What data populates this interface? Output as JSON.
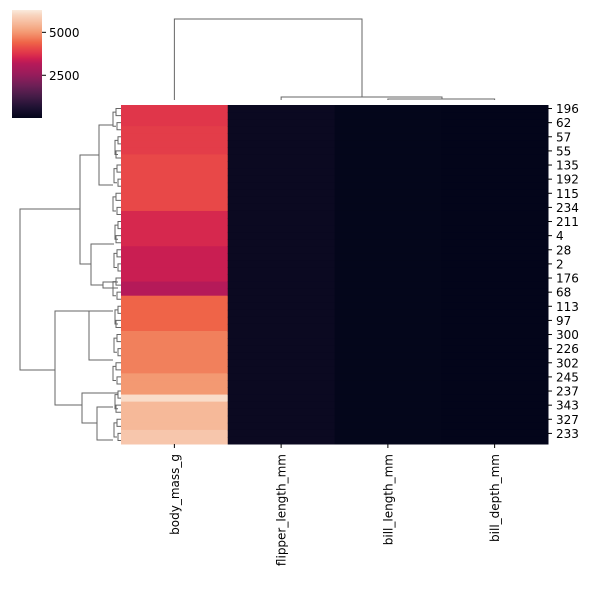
{
  "chart_data": {
    "type": "heatmap",
    "subtype": "clustermap",
    "title": "",
    "columns": [
      "body_mass_g",
      "flipper_length_mm",
      "bill_length_mm",
      "bill_depth_mm"
    ],
    "row_tick_labels": [
      "196",
      "62",
      "57",
      "55",
      "135",
      "192",
      "115",
      "234",
      "211",
      "4",
      "28",
      "2",
      "176",
      "68",
      "113",
      "97",
      "300",
      "226",
      "302",
      "245",
      "237",
      "343",
      "327",
      "233"
    ],
    "row_count": 48,
    "values_by_column": {
      "body_mass_g": [
        3800,
        3800,
        3800,
        3900,
        3900,
        3900,
        3900,
        4050,
        4050,
        4050,
        4050,
        4050,
        4050,
        4050,
        4050,
        3600,
        3600,
        3600,
        3600,
        3600,
        3400,
        3400,
        3400,
        3400,
        3400,
        3150,
        3150,
        4400,
        4400,
        4400,
        4400,
        4400,
        4700,
        4700,
        4700,
        4700,
        4700,
        4700,
        5000,
        5000,
        5000,
        6100,
        5500,
        5500,
        5500,
        5500,
        5750,
        5750
      ],
      "flipper_length_mm": 200,
      "bill_length_mm": 44,
      "bill_depth_mm": 17
    },
    "colorbar": {
      "colormap": "rocket",
      "ticks": [
        2500,
        5000
      ],
      "tick_labels": [
        "2500",
        "5000"
      ],
      "vmin": 13,
      "vmax": 6300
    },
    "column_dendrogram": "body_mass_g joins last with (flipper_length_mm, (bill_length_mm, bill_depth_mm))",
    "row_dendrogram": true
  }
}
